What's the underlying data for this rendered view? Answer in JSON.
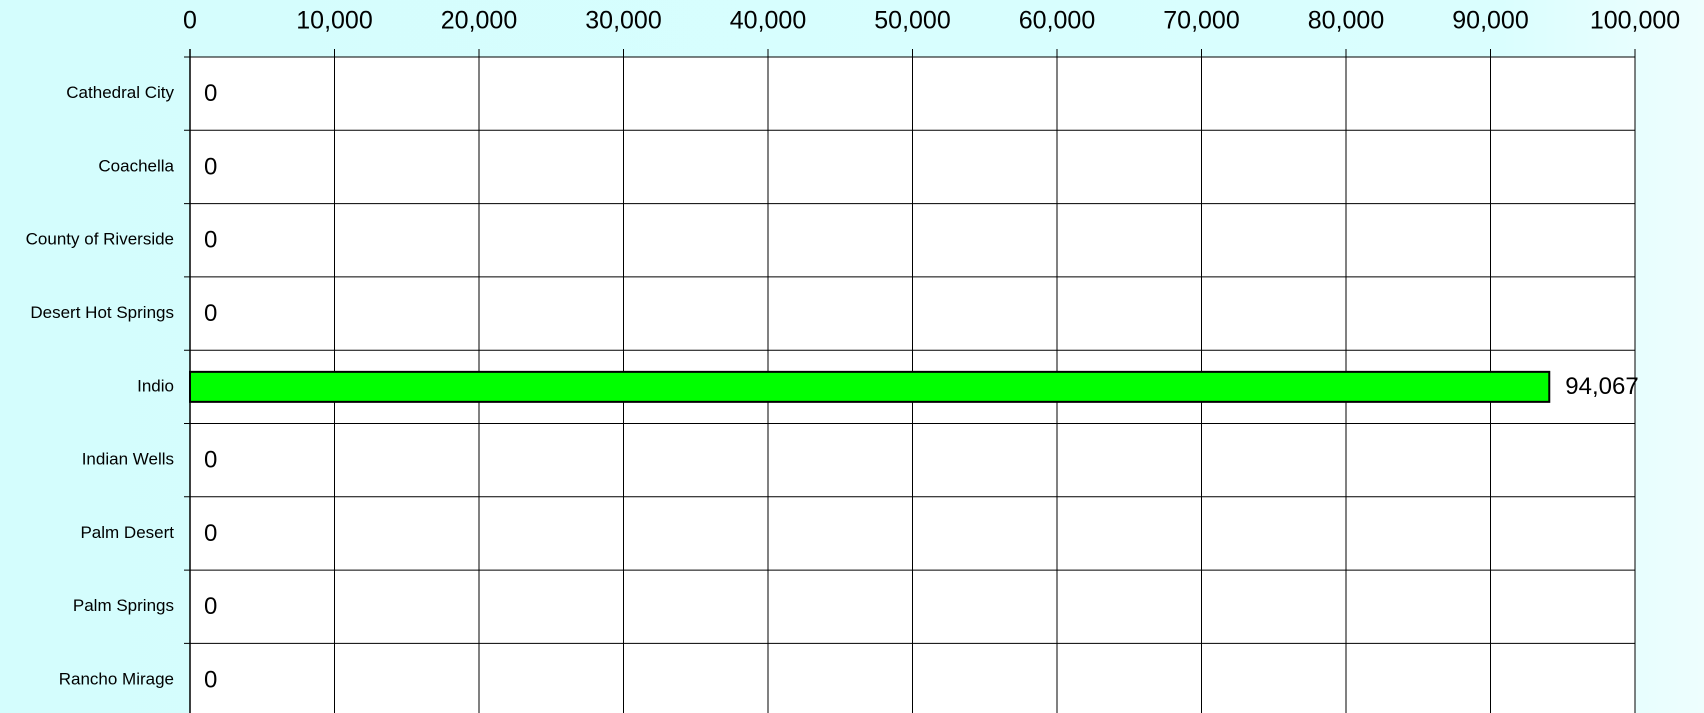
{
  "chart_data": {
    "type": "bar",
    "orientation": "horizontal",
    "categories": [
      "Cathedral City",
      "Coachella",
      "County of Riverside",
      "Desert Hot Springs",
      "Indio",
      "Indian Wells",
      "Palm Desert",
      "Palm Springs",
      "Rancho Mirage"
    ],
    "values": [
      0,
      0,
      0,
      0,
      94067,
      0,
      0,
      0,
      0
    ],
    "value_labels": [
      "0",
      "0",
      "0",
      "0",
      "94,067",
      "0",
      "0",
      "0",
      "0"
    ],
    "color": "#00ff00",
    "xlim": [
      0,
      100000
    ],
    "xticks": [
      0,
      {
        "value": 10000,
        "label": "10,000"
      },
      {
        "value": 20000,
        "label": "20,000"
      },
      {
        "value": 30000,
        "label": "30,000"
      },
      {
        "value": 40000,
        "label": "40,000"
      },
      {
        "value": 50000,
        "label": "50,000"
      },
      {
        "value": 60000,
        "label": "60,000"
      },
      {
        "value": 70000,
        "label": "70,000"
      },
      {
        "value": 80000,
        "label": "80,000"
      },
      {
        "value": 90000,
        "label": "90,000"
      },
      {
        "value": 100000,
        "label": "100,000"
      }
    ],
    "grid": true
  }
}
